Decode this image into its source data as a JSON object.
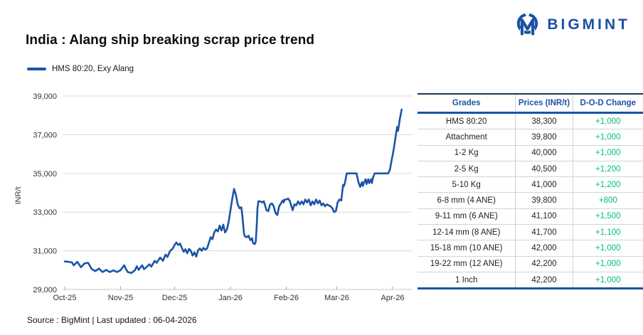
{
  "header": {
    "title": "India : Alang ship breaking scrap price trend"
  },
  "logo": {
    "text": "BIGMINT",
    "color": "#1D50A3",
    "icon": "bigmint-owl-m-icon"
  },
  "legend": {
    "label": "HMS 80:20, Exy Alang",
    "line_color": "#1B54A5"
  },
  "colors": {
    "line_blue": "#1B54A5",
    "table_blue": "#1B54A5",
    "change_green": "#00BE74",
    "gridline": "#DADADA",
    "axis": "#C4C4C4"
  },
  "chart_data": {
    "type": "line",
    "title": "India : Alang ship breaking scrap price trend",
    "xlabel": "",
    "ylabel": "INR/t",
    "ylim": [
      29000,
      39000
    ],
    "y_ticks": [
      39000,
      37000,
      35000,
      33000,
      31000,
      29000
    ],
    "y_tick_labels": [
      "39,000",
      "37,000",
      "35,000",
      "33,000",
      "31,000",
      "29,000"
    ],
    "x_tick_labels": [
      "Oct-25",
      "Nov-25",
      "Dec-25",
      "Jan-26",
      "Feb-26",
      "Mar-26",
      "Apr-26"
    ],
    "x_tick_day_offsets": [
      0,
      31,
      61,
      92,
      123,
      151,
      182
    ],
    "grid": "horizontal",
    "legend_position": "top-left",
    "series": [
      {
        "name": "HMS 80:20, Exy Alang",
        "color": "#1B54A5",
        "points": [
          [
            0,
            30450
          ],
          [
            2,
            30430
          ],
          [
            4,
            30400
          ],
          [
            5,
            30250
          ],
          [
            7,
            30430
          ],
          [
            9,
            30150
          ],
          [
            11,
            30350
          ],
          [
            13,
            30380
          ],
          [
            15,
            30050
          ],
          [
            17,
            29950
          ],
          [
            19,
            30080
          ],
          [
            21,
            29900
          ],
          [
            23,
            30010
          ],
          [
            25,
            29900
          ],
          [
            27,
            29990
          ],
          [
            29,
            29900
          ],
          [
            31,
            30000
          ],
          [
            33,
            30250
          ],
          [
            34,
            30050
          ],
          [
            35,
            29900
          ],
          [
            37,
            29850
          ],
          [
            39,
            30000
          ],
          [
            40,
            30200
          ],
          [
            41,
            30020
          ],
          [
            43,
            30250
          ],
          [
            44,
            30050
          ],
          [
            45,
            30120
          ],
          [
            47,
            30300
          ],
          [
            48,
            30180
          ],
          [
            50,
            30480
          ],
          [
            51,
            30380
          ],
          [
            53,
            30650
          ],
          [
            54.5,
            30480
          ],
          [
            56,
            30800
          ],
          [
            57,
            30680
          ],
          [
            58.5,
            31000
          ],
          [
            60,
            31120
          ],
          [
            61,
            31300
          ],
          [
            62,
            31430
          ],
          [
            63,
            31300
          ],
          [
            64,
            31370
          ],
          [
            65,
            31150
          ],
          [
            66,
            30950
          ],
          [
            67,
            31080
          ],
          [
            68,
            30870
          ],
          [
            69,
            31100
          ],
          [
            70,
            31000
          ],
          [
            71,
            30750
          ],
          [
            72,
            30920
          ],
          [
            73,
            30700
          ],
          [
            74,
            31020
          ],
          [
            75,
            31120
          ],
          [
            76,
            31000
          ],
          [
            77,
            31150
          ],
          [
            78,
            31060
          ],
          [
            79,
            31120
          ],
          [
            80,
            31400
          ],
          [
            81,
            31700
          ],
          [
            82,
            31600
          ],
          [
            83,
            31950
          ],
          [
            84,
            32100
          ],
          [
            85,
            32000
          ],
          [
            86,
            32300
          ],
          [
            87,
            32050
          ],
          [
            88,
            32350
          ],
          [
            89,
            31950
          ],
          [
            90,
            32100
          ],
          [
            91,
            32500
          ],
          [
            92,
            33100
          ],
          [
            93,
            33700
          ],
          [
            94,
            34200
          ],
          [
            95,
            33900
          ],
          [
            96,
            33400
          ],
          [
            97,
            33200
          ],
          [
            98,
            33250
          ],
          [
            98.5,
            32900
          ],
          [
            99.5,
            31900
          ],
          [
            100,
            31750
          ],
          [
            101,
            31700
          ],
          [
            102,
            31780
          ],
          [
            103,
            31550
          ],
          [
            104,
            31650
          ],
          [
            104.5,
            31400
          ],
          [
            105.5,
            31350
          ],
          [
            106,
            31450
          ],
          [
            106.5,
            32200
          ],
          [
            107,
            33200
          ],
          [
            107.5,
            33560
          ],
          [
            108.5,
            33560
          ],
          [
            109.5,
            33500
          ],
          [
            110.5,
            33560
          ],
          [
            112,
            33100
          ],
          [
            113,
            33050
          ],
          [
            114,
            33400
          ],
          [
            115,
            33450
          ],
          [
            116,
            33300
          ],
          [
            117,
            32950
          ],
          [
            118,
            32850
          ],
          [
            119,
            33300
          ],
          [
            120,
            33450
          ],
          [
            121,
            33600
          ],
          [
            121.5,
            33500
          ],
          [
            122,
            33650
          ],
          [
            123,
            33650
          ],
          [
            124,
            33700
          ],
          [
            125,
            33560
          ],
          [
            126.5,
            33100
          ],
          [
            127.5,
            33400
          ],
          [
            128.5,
            33350
          ],
          [
            129.5,
            33550
          ],
          [
            130.5,
            33400
          ],
          [
            131.5,
            33550
          ],
          [
            132.5,
            33400
          ],
          [
            133.5,
            33650
          ],
          [
            134.5,
            33500
          ],
          [
            135.5,
            33650
          ],
          [
            136.5,
            33350
          ],
          [
            137.5,
            33550
          ],
          [
            138.5,
            33400
          ],
          [
            139.5,
            33650
          ],
          [
            140.5,
            33450
          ],
          [
            141.5,
            33600
          ],
          [
            142.5,
            33350
          ],
          [
            143.5,
            33450
          ],
          [
            144.5,
            33300
          ],
          [
            145.5,
            33400
          ],
          [
            146.5,
            33350
          ],
          [
            147.5,
            33300
          ],
          [
            148.5,
            33200
          ],
          [
            149.5,
            33000
          ],
          [
            150.5,
            33050
          ],
          [
            151.5,
            33500
          ],
          [
            152.5,
            33650
          ],
          [
            153.5,
            33600
          ],
          [
            154,
            34000
          ],
          [
            154.5,
            34400
          ],
          [
            155,
            34350
          ],
          [
            155.5,
            34500
          ],
          [
            156.5,
            35000
          ],
          [
            158,
            35000
          ],
          [
            160,
            35000
          ],
          [
            162,
            35000
          ],
          [
            163,
            34550
          ],
          [
            164,
            34300
          ],
          [
            165,
            34550
          ],
          [
            165.5,
            34350
          ],
          [
            166,
            34500
          ],
          [
            167,
            34700
          ],
          [
            167.5,
            34450
          ],
          [
            168.5,
            34700
          ],
          [
            169,
            34500
          ],
          [
            170,
            34700
          ],
          [
            170.5,
            34500
          ],
          [
            171,
            34750
          ],
          [
            172,
            35000
          ],
          [
            174,
            35000
          ],
          [
            176,
            35000
          ],
          [
            178,
            35000
          ],
          [
            179.5,
            35000
          ],
          [
            180.5,
            35200
          ],
          [
            181.5,
            35700
          ],
          [
            182.5,
            36200
          ],
          [
            183.5,
            36800
          ],
          [
            184.5,
            37400
          ],
          [
            185,
            37200
          ],
          [
            186,
            37800
          ],
          [
            187,
            38300
          ]
        ]
      }
    ]
  },
  "table": {
    "headers": [
      "Grades",
      "Prices (INR/t)",
      "D-O-D Change"
    ],
    "rows": [
      {
        "grade": "HMS 80:20",
        "price": "38,300",
        "change": "+1,000"
      },
      {
        "grade": "Attachment",
        "price": "39,800",
        "change": "+1,000"
      },
      {
        "grade": "1-2 Kg",
        "price": "40,000",
        "change": "+1,000"
      },
      {
        "grade": "2-5 Kg",
        "price": "40,500",
        "change": "+1,200"
      },
      {
        "grade": "5-10 Kg",
        "price": "41,000",
        "change": "+1,200"
      },
      {
        "grade": "6-8 mm (4 ANE)",
        "price": "39,800",
        "change": "+800"
      },
      {
        "grade": "9-11 mm (6 ANE)",
        "price": "41,100",
        "change": "+1,500"
      },
      {
        "grade": "12-14 mm (8 ANE)",
        "price": "41,700",
        "change": "+1,100"
      },
      {
        "grade": "15-18 mm (10 ANE)",
        "price": "42,000",
        "change": "+1,000"
      },
      {
        "grade": "19-22 mm (12 ANE)",
        "price": "42,200",
        "change": "+1,000"
      },
      {
        "grade": "1 Inch",
        "price": "42,200",
        "change": "+1,000"
      }
    ]
  },
  "footer": {
    "source": "Source : BigMint | Last updated : 06-04-2026"
  }
}
